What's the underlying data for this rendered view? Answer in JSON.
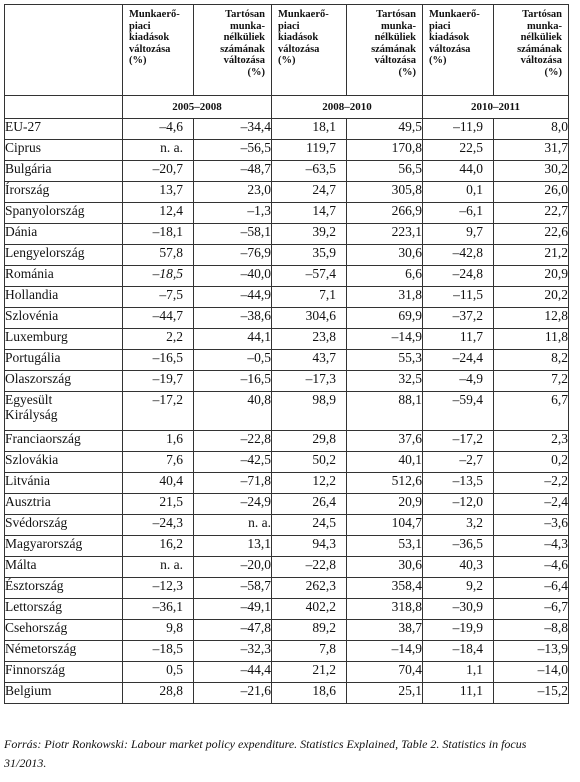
{
  "headers": [
    "",
    "Munkaerő-\npiaci\nkiadások\nváltozása\n(%)",
    "Tartósan\nmunka-\nnélküliek\nszámának\nváltozása\n(%)",
    "Munkaerő-\npiaci\nkiadások\nváltozása\n(%)",
    "Tartósan\nmunka-\nnélküliek\nszámának\nváltozása\n(%)",
    "Munkaerő-\npiaci\nkiadások\nváltozása\n(%)",
    "Tartósan\nmunka-\nnélküliek\nszámának\nváltozása\n(%)"
  ],
  "periods": [
    "2005–2008",
    "2008–2010",
    "2010–2011"
  ],
  "rows": [
    [
      "EU-27",
      "–4,6",
      "–34,4",
      "18,1",
      "49,5",
      "–11,9",
      "8,0"
    ],
    [
      "Ciprus",
      "n. a.",
      "–56,5",
      "119,7",
      "170,8",
      "22,5",
      "31,7"
    ],
    [
      "Bulgária",
      "–20,7",
      "–48,7",
      "–63,5",
      "56,5",
      "44,0",
      "30,2"
    ],
    [
      "Írország",
      "13,7",
      "23,0",
      "24,7",
      "305,8",
      "0,1",
      "26,0"
    ],
    [
      "Spanyolország",
      "12,4",
      "–1,3",
      "14,7",
      "266,9",
      "–6,1",
      "22,7"
    ],
    [
      "Dánia",
      "–18,1",
      "–58,1",
      "39,2",
      "223,1",
      "9,7",
      "22,6"
    ],
    [
      "Lengyelország",
      "57,8",
      "–76,9",
      "35,9",
      "30,6",
      "–42,8",
      "21,2"
    ],
    [
      "Románia",
      "–18,5",
      "–40,0",
      "–57,4",
      "6,6",
      "–24,8",
      "20,9"
    ],
    [
      "Hollandia",
      "–7,5",
      "–44,9",
      "7,1",
      "31,8",
      "–11,5",
      "20,2"
    ],
    [
      "Szlovénia",
      "–44,7",
      "–38,6",
      "304,6",
      "69,9",
      "–37,2",
      "12,8"
    ],
    [
      "Luxemburg",
      "2,2",
      "44,1",
      "23,8",
      "–14,9",
      "11,7",
      "11,8"
    ],
    [
      "Portugália",
      "–16,5",
      "–0,5",
      "43,7",
      "55,3",
      "–24,4",
      "8,2"
    ],
    [
      "Olaszország",
      "–19,7",
      "–16,5",
      "–17,3",
      "32,5",
      "–4,9",
      "7,2"
    ],
    [
      "Egyesült\nKirályság",
      "–17,2",
      "40,8",
      "98,9",
      "88,1",
      "–59,4",
      "6,7"
    ],
    [
      "Franciaország",
      "1,6",
      "–22,8",
      "29,8",
      "37,6",
      "–17,2",
      "2,3"
    ],
    [
      "Szlovákia",
      "7,6",
      "–42,5",
      "50,2",
      "40,1",
      "–2,7",
      "0,2"
    ],
    [
      "Litvánia",
      "40,4",
      "–71,8",
      "12,2",
      "512,6",
      "–13,5",
      "–2,2"
    ],
    [
      "Ausztria",
      "21,5",
      "–24,9",
      "26,4",
      "20,9",
      "–12,0",
      "–2,4"
    ],
    [
      "Svédország",
      "–24,3",
      "n. a.",
      "24,5",
      "104,7",
      "3,2",
      "–3,6"
    ],
    [
      "Magyarország",
      "16,2",
      "13,1",
      "94,3",
      "53,1",
      "–36,5",
      "–4,3"
    ],
    [
      "Málta",
      "n. a.",
      "–20,0",
      "–22,8",
      "30,6",
      "40,3",
      "–4,6"
    ],
    [
      "Észtország",
      "–12,3",
      "–58,7",
      "262,3",
      "358,4",
      "9,2",
      "–6,4"
    ],
    [
      "Lettország",
      "–36,1",
      "–49,1",
      "402,2",
      "318,8",
      "–30,9",
      "–6,7"
    ],
    [
      "Csehország",
      "9,8",
      "–47,8",
      "89,2",
      "38,7",
      "–19,9",
      "–8,8"
    ],
    [
      "Németország",
      "–18,5",
      "–32,3",
      "7,8",
      "–14,9",
      "–18,4",
      "–13,9"
    ],
    [
      "Finnország",
      "0,5",
      "–44,4",
      "21,2",
      "70,4",
      "1,1",
      "–14,0"
    ],
    [
      "Belgium",
      "28,8",
      "–21,6",
      "18,6",
      "25,1",
      "11,1",
      "–15,2"
    ]
  ],
  "source": "Forrás: Piotr Ronkowski: Labour market policy expenditure. Statistics Explained, Table 2. Statistics in focus 31/2013."
}
